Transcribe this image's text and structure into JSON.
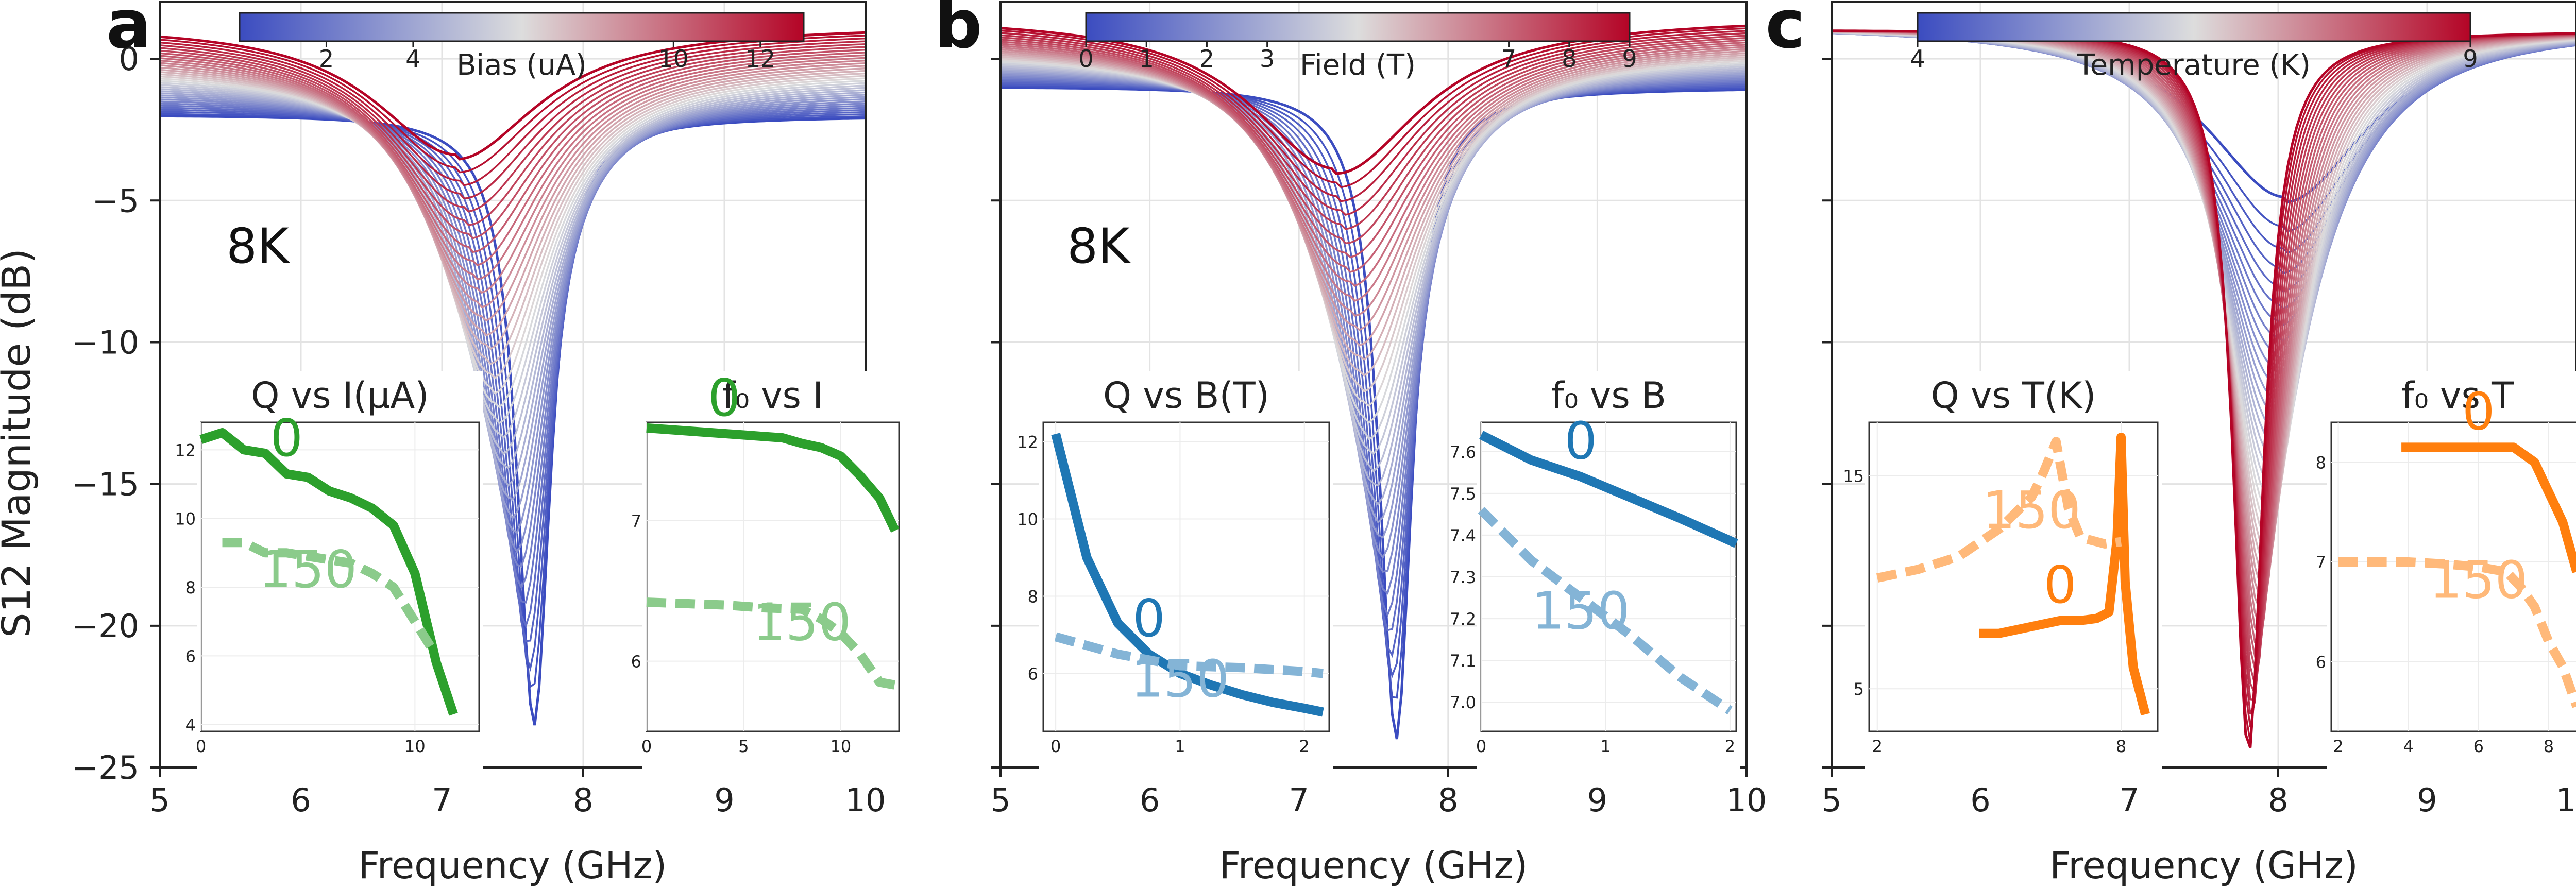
{
  "figure": {
    "y_axis_label": "S12 Magnitude (dB)"
  },
  "colors": {
    "cold": "#3b4cc0",
    "mid": "#dddddd",
    "hot": "#b40426",
    "bias_green": "#2ca02c",
    "field_blue": "#1f77b4",
    "temp_orange": "#ff7f0e"
  },
  "chart_data": [
    {
      "id": "a",
      "type": "line",
      "panel_letter": "a",
      "xlabel": "Frequency (GHz)",
      "ylabel": "S12 Magnitude (dB)",
      "xlim": [
        5,
        10
      ],
      "ylim": [
        -25,
        2
      ],
      "x_ticks": [
        "5",
        "6",
        "7",
        "8",
        "9",
        "10"
      ],
      "y_ticks": [
        "0",
        "−5",
        "−10",
        "−15",
        "−20",
        "−25"
      ],
      "grid": true,
      "annotation": "8K",
      "colorbar": {
        "label": "Bias (uA)",
        "range": [
          0,
          13
        ],
        "ticks": [
          "2",
          "4",
          "10",
          "12"
        ],
        "colormap": "coolwarm"
      },
      "sweep": {
        "parameter": "Bias (uA)",
        "count": 36,
        "resonance_start": {
          "f0": 7.65,
          "depth": -23.5,
          "baseline": -2.0
        },
        "resonance_end": {
          "f0": 7.1,
          "depth": -3.5,
          "baseline": 1.2
        }
      },
      "insets": [
        {
          "title": "Q vs I(μA)",
          "x_ticks": [
            "0",
            "10"
          ],
          "y_ticks": [
            "4",
            "6",
            "8",
            "10",
            "12"
          ],
          "xlim": [
            0,
            13
          ],
          "ylim": [
            3.8,
            12.8
          ],
          "series": [
            {
              "name": "0",
              "style": "solid",
              "x": [
                0,
                1,
                2,
                3,
                4,
                5,
                6,
                7,
                8,
                9,
                10,
                11,
                11.8
              ],
              "y": [
                12.3,
                12.5,
                12.0,
                11.9,
                11.3,
                11.2,
                10.8,
                10.6,
                10.3,
                9.8,
                8.4,
                5.8,
                4.3
              ]
            },
            {
              "name": "150",
              "style": "dashed",
              "x": [
                1,
                2,
                3,
                4,
                5,
                6,
                7,
                8,
                9,
                10,
                10.8
              ],
              "y": [
                9.3,
                9.3,
                9.0,
                9.0,
                8.9,
                8.8,
                8.7,
                8.4,
                8.0,
                7.0,
                6.2
              ]
            }
          ]
        },
        {
          "title": "f₀ vs I",
          "x_ticks": [
            "0",
            "5",
            "10"
          ],
          "y_ticks": [
            "6",
            "7"
          ],
          "xlim": [
            0,
            13
          ],
          "ylim": [
            5.5,
            7.7
          ],
          "series": [
            {
              "name": "0",
              "style": "solid",
              "x": [
                0,
                1,
                2,
                3,
                4,
                5,
                6,
                7,
                8,
                9,
                10,
                11,
                12,
                12.8
              ],
              "y": [
                7.66,
                7.65,
                7.64,
                7.63,
                7.62,
                7.61,
                7.6,
                7.59,
                7.55,
                7.52,
                7.46,
                7.32,
                7.16,
                6.93
              ]
            },
            {
              "name": "150",
              "style": "dashed",
              "x": [
                0,
                2,
                4,
                6,
                8,
                9,
                10,
                11,
                12,
                12.8
              ],
              "y": [
                6.42,
                6.41,
                6.4,
                6.38,
                6.37,
                6.3,
                6.2,
                6.05,
                5.85,
                5.83
              ]
            }
          ]
        }
      ]
    },
    {
      "id": "b",
      "type": "line",
      "panel_letter": "b",
      "xlabel": "Frequency (GHz)",
      "ylabel": "",
      "xlim": [
        5,
        10
      ],
      "ylim": [
        -25,
        2
      ],
      "x_ticks": [
        "5",
        "6",
        "7",
        "8",
        "9",
        "10"
      ],
      "y_ticks": [],
      "grid": true,
      "annotation": "8K",
      "colorbar": {
        "label": "Field (T)",
        "range": [
          0,
          9
        ],
        "ticks": [
          "0",
          "1",
          "2",
          "3",
          "7",
          "8",
          "9"
        ],
        "colormap": "coolwarm"
      },
      "sweep": {
        "parameter": "Field (T)",
        "count": 34,
        "resonance_start": {
          "f0": 7.65,
          "depth": -24.0,
          "baseline": -1.0
        },
        "resonance_end": {
          "f0": 7.25,
          "depth": -4.0,
          "baseline": 1.5
        }
      },
      "insets": [
        {
          "title": "Q vs B(T)",
          "x_ticks": [
            "0",
            "1",
            "2"
          ],
          "y_ticks": [
            "6",
            "8",
            "10",
            "12"
          ],
          "xlim": [
            -0.1,
            2.2
          ],
          "ylim": [
            4.5,
            12.5
          ],
          "series": [
            {
              "name": "0",
              "style": "solid",
              "x": [
                0,
                0.25,
                0.5,
                0.75,
                1.0,
                1.25,
                1.5,
                1.75,
                2.0,
                2.15
              ],
              "y": [
                12.2,
                9.0,
                7.3,
                6.5,
                6.0,
                5.7,
                5.45,
                5.25,
                5.1,
                5.0
              ]
            },
            {
              "name": "150",
              "style": "dashed",
              "x": [
                0,
                0.5,
                1.0,
                1.5,
                2.0,
                2.15
              ],
              "y": [
                6.95,
                6.5,
                6.2,
                6.15,
                6.05,
                6.0
              ]
            }
          ]
        },
        {
          "title": "f₀ vs B",
          "x_ticks": [
            "0",
            "1",
            "2"
          ],
          "y_ticks": [
            "7.0",
            "7.1",
            "7.2",
            "7.3",
            "7.4",
            "7.5",
            "7.6"
          ],
          "xlim": [
            0,
            2.05
          ],
          "ylim": [
            6.93,
            7.67
          ],
          "series": [
            {
              "name": "0",
              "style": "solid",
              "x": [
                0,
                0.4,
                0.8,
                1.2,
                1.6,
                2.05
              ],
              "y": [
                7.64,
                7.58,
                7.54,
                7.49,
                7.44,
                7.38
              ]
            },
            {
              "name": "150",
              "style": "dashed",
              "x": [
                0,
                0.4,
                0.8,
                1.2,
                1.6,
                2.0
              ],
              "y": [
                7.46,
                7.34,
                7.25,
                7.16,
                7.06,
                6.98
              ]
            }
          ]
        }
      ]
    },
    {
      "id": "c",
      "type": "line",
      "panel_letter": "c",
      "xlabel": "Frequency (GHz)",
      "ylabel": "",
      "xlim": [
        5,
        10
      ],
      "ylim": [
        -25,
        2
      ],
      "x_ticks": [
        "5",
        "6",
        "7",
        "8",
        "9",
        "10"
      ],
      "y_ticks": [],
      "grid": true,
      "annotation": "",
      "colorbar": {
        "label": "Temperature (K)",
        "range": [
          4,
          9
        ],
        "ticks": [
          "4",
          "9"
        ],
        "colormap": "coolwarm"
      },
      "sweep": {
        "parameter": "Temperature (K)",
        "count": 40,
        "resonance_start": {
          "f0": 8.05,
          "depth": -5.0,
          "baseline": 1.2
        },
        "resonance_end": {
          "f0": 7.8,
          "depth": -24.5,
          "baseline": 1.0
        }
      },
      "insets": [
        {
          "title": "Q vs T(K)",
          "x_ticks": [
            "2",
            "8"
          ],
          "y_ticks": [
            "5",
            "15"
          ],
          "xlim": [
            1.8,
            8.9
          ],
          "ylim": [
            3.0,
            17.5
          ],
          "series": [
            {
              "name": "0",
              "style": "solid",
              "x": [
                4.5,
                5.0,
                5.5,
                6.0,
                6.5,
                7.0,
                7.4,
                7.7,
                7.9,
                8.0,
                8.1,
                8.3,
                8.6
              ],
              "y": [
                7.6,
                7.6,
                7.8,
                8.0,
                8.2,
                8.2,
                8.3,
                8.6,
                12.0,
                16.8,
                10.0,
                6.0,
                3.8
              ]
            },
            {
              "name": "150",
              "style": "dashed",
              "x": [
                2.0,
                3.0,
                4.0,
                5.0,
                5.8,
                6.1,
                6.4,
                6.7,
                7.0,
                7.6,
                8.0
              ],
              "y": [
                10.2,
                10.6,
                11.2,
                12.5,
                14.0,
                15.2,
                16.6,
                13.5,
                12.1,
                11.8,
                11.9
              ]
            }
          ]
        },
        {
          "title": "f₀ vs T",
          "x_ticks": [
            "2",
            "4",
            "6",
            "8"
          ],
          "y_ticks": [
            "6",
            "7",
            "8"
          ],
          "xlim": [
            1.8,
            9.0
          ],
          "ylim": [
            5.3,
            8.4
          ],
          "series": [
            {
              "name": "0",
              "style": "solid",
              "x": [
                3.8,
                5.0,
                6.0,
                7.0,
                7.6,
                8.0,
                8.4,
                8.8
              ],
              "y": [
                8.15,
                8.15,
                8.15,
                8.15,
                8.0,
                7.7,
                7.4,
                6.9
              ]
            },
            {
              "name": "150",
              "style": "dashed",
              "x": [
                2.0,
                3.0,
                4.0,
                5.0,
                6.0,
                6.8,
                7.2,
                7.6,
                8.0,
                8.4,
                8.8
              ],
              "y": [
                7.0,
                7.0,
                7.0,
                6.98,
                6.95,
                6.9,
                6.75,
                6.55,
                6.2,
                5.95,
                5.55
              ]
            }
          ]
        }
      ]
    }
  ]
}
